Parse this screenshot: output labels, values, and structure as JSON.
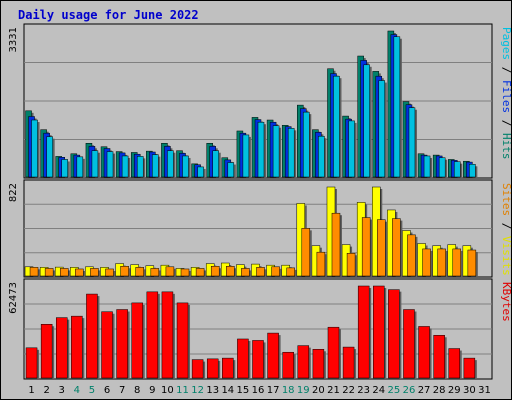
{
  "chart_data": {
    "type": "bar",
    "title": "Daily usage for June 2022",
    "categories": [
      "1",
      "2",
      "3",
      "4",
      "5",
      "6",
      "7",
      "8",
      "9",
      "10",
      "11",
      "12",
      "13",
      "14",
      "15",
      "16",
      "17",
      "18",
      "19",
      "20",
      "21",
      "22",
      "23",
      "24",
      "25",
      "26",
      "27",
      "28",
      "29",
      "30",
      "31"
    ],
    "weekend_days": [
      4,
      5,
      11,
      12,
      18,
      19,
      25,
      26
    ],
    "panels": [
      {
        "name": "hits-files-pages",
        "max_label": "3331",
        "ylim": [
          0,
          3331
        ],
        "legend": [
          {
            "text": "Pages",
            "color": "#00c0e0"
          },
          {
            "text": " / ",
            "color": "#000000"
          },
          {
            "text": "Files",
            "color": "#0030e0"
          },
          {
            "text": " / ",
            "color": "#000000"
          },
          {
            "text": "Hits",
            "color": "#00806a"
          }
        ],
        "series": [
          {
            "name": "Hits",
            "color": "#00806a",
            "values": [
              1510,
              1080,
              470,
              530,
              770,
              690,
              580,
              560,
              590,
              770,
              600,
              300,
              770,
              440,
              1050,
              1360,
              1300,
              1180,
              1640,
              1080,
              2470,
              1390,
              2760,
              2410,
              3331,
              1720,
              530,
              500,
              400,
              360,
              null
            ]
          },
          {
            "name": "Files",
            "color": "#0030e0",
            "values": [
              1380,
              1000,
              450,
              500,
              700,
              650,
              550,
              520,
              570,
              700,
              540,
              280,
              700,
              390,
              1000,
              1310,
              1250,
              1150,
              1560,
              1020,
              2360,
              1320,
              2660,
              2300,
              3250,
              1650,
              500,
              480,
              380,
              340,
              null
            ]
          },
          {
            "name": "Pages",
            "color": "#00c0e0",
            "values": [
              1300,
              920,
              400,
              460,
              600,
              580,
              480,
              470,
              510,
              600,
              480,
              230,
              600,
              330,
              960,
              1250,
              1170,
              1110,
              1480,
              930,
              2300,
              1280,
              2560,
              2200,
              3200,
              1580,
              480,
              440,
              350,
              290,
              null
            ]
          }
        ]
      },
      {
        "name": "visits-sites",
        "max_label": "822",
        "ylim": [
          0,
          822
        ],
        "legend": [
          {
            "text": "Sites",
            "color": "#e08000"
          },
          {
            "text": " / ",
            "color": "#000000"
          },
          {
            "text": "Visits",
            "color": "#e0e000"
          }
        ],
        "series": [
          {
            "name": "Visits",
            "color": "#ffff00",
            "values": [
              85,
              80,
              82,
              80,
              85,
              80,
              115,
              105,
              95,
              100,
              70,
              80,
              115,
              120,
              105,
              110,
              100,
              100,
              670,
              280,
              822,
              290,
              680,
              822,
              610,
              420,
              300,
              280,
              290,
              280,
              null
            ]
          },
          {
            "name": "Sites",
            "color": "#ff8c00",
            "values": [
              80,
              70,
              70,
              65,
              70,
              65,
              90,
              80,
              70,
              85,
              65,
              70,
              90,
              90,
              70,
              80,
              85,
              75,
              440,
              220,
              580,
              210,
              540,
              520,
              530,
              380,
              250,
              250,
              250,
              240,
              null
            ]
          }
        ]
      },
      {
        "name": "kbytes",
        "max_label": "62473",
        "ylim": [
          0,
          62473
        ],
        "legend": [
          {
            "text": "KBytes",
            "color": "#e00000"
          }
        ],
        "series": [
          {
            "name": "KBytes",
            "color": "#ff0000",
            "values": [
              20500,
              36500,
              41000,
              42000,
              57000,
              45000,
              46500,
              51000,
              58500,
              58500,
              51000,
              12500,
              13000,
              13500,
              26500,
              25500,
              30500,
              17500,
              22000,
              19500,
              34500,
              21000,
              62473,
              62473,
              60000,
              46500,
              35000,
              29000,
              20000,
              13500,
              null
            ]
          }
        ]
      }
    ]
  }
}
